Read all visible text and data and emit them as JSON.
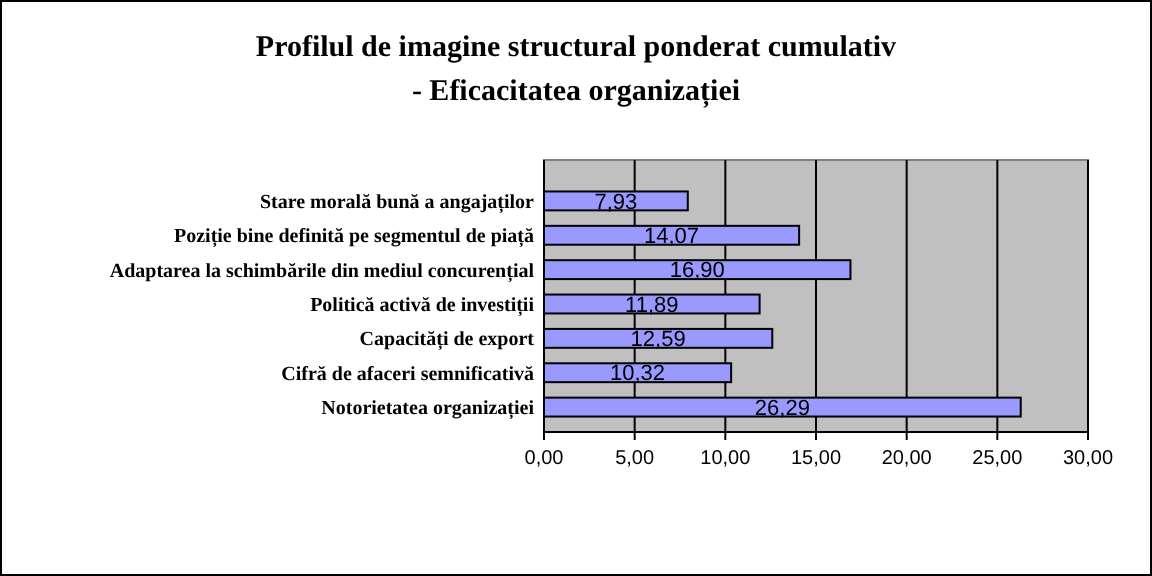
{
  "chart_data": {
    "type": "bar",
    "orientation": "horizontal",
    "title": "Profilul de imagine structural ponderat cumulativ",
    "subtitle": "- Eficacitatea organizației",
    "categories": [
      "Stare morală bună a angajaților",
      "Poziție bine definită pe segmentul de piață",
      "Adaptarea la schimbările din mediul concurențial",
      "Politică activă de investiții",
      "Capacități de export",
      "Cifră de afaceri semnificativă",
      "Notorietatea organizației"
    ],
    "values": [
      7.93,
      14.07,
      16.9,
      11.89,
      12.59,
      10.32,
      26.29
    ],
    "value_labels": [
      "7,93",
      "14,07",
      "16,90",
      "11,89",
      "12,59",
      "10,32",
      "26,29"
    ],
    "color": "#9999ff",
    "xlim": [
      0,
      30
    ],
    "xticks": [
      {
        "value": 0,
        "label": "0,00"
      },
      {
        "value": 5,
        "label": "5,00"
      },
      {
        "value": 10,
        "label": "10,00"
      },
      {
        "value": 15,
        "label": "15,00"
      },
      {
        "value": 20,
        "label": "20,00"
      },
      {
        "value": 25,
        "label": "25,00"
      },
      {
        "value": 30,
        "label": "30,00"
      }
    ],
    "grid": "x"
  }
}
